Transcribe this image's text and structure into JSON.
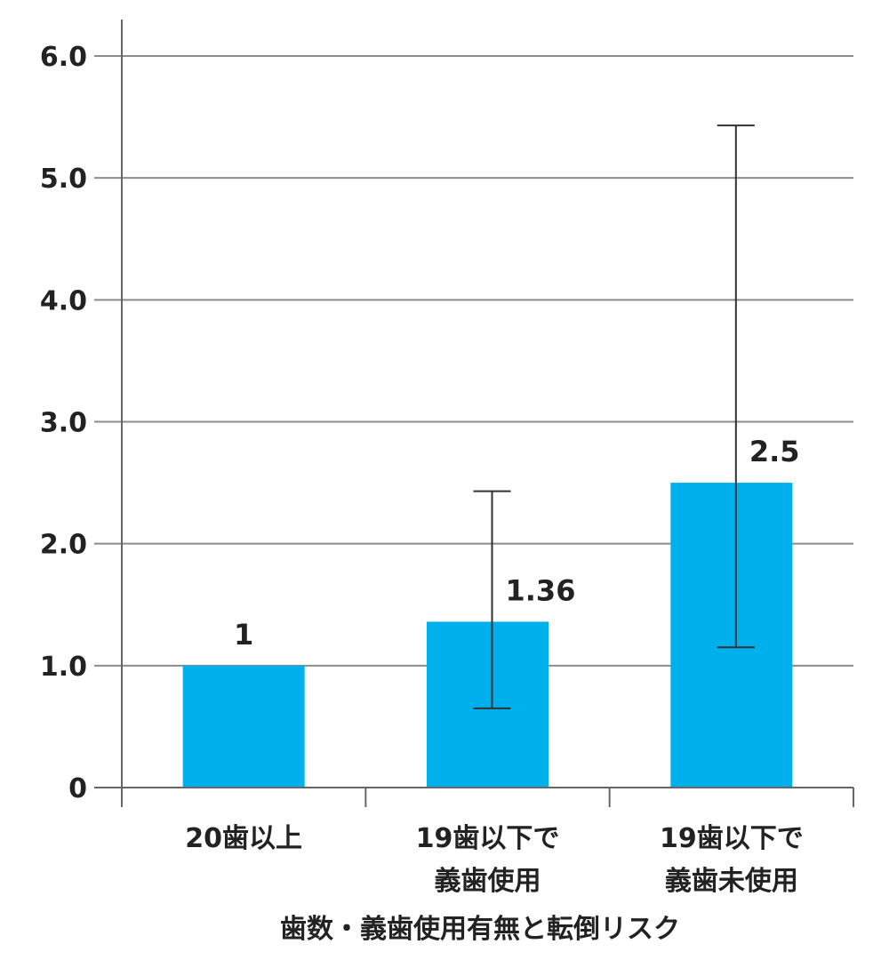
{
  "chart_data": {
    "type": "bar",
    "title": "",
    "xlabel": "歯数・義歯使用有無と転倒リスク",
    "ylabel": "",
    "ylim": [
      0,
      6
    ],
    "yticks": [
      {
        "value": 0,
        "label": "0"
      },
      {
        "value": 1,
        "label": "1.0"
      },
      {
        "value": 2,
        "label": "2.0"
      },
      {
        "value": 3,
        "label": "3.0"
      },
      {
        "value": 4,
        "label": "4.0"
      },
      {
        "value": 5,
        "label": "5.0"
      },
      {
        "value": 6,
        "label": "6.0"
      }
    ],
    "grid": true,
    "categories": [
      [
        "20歯以上"
      ],
      [
        "19歯以下で",
        "義歯使用"
      ],
      [
        "19歯以下で",
        "義歯未使用"
      ]
    ],
    "values": [
      1,
      1.36,
      2.5
    ],
    "value_labels": [
      "1",
      "1.36",
      "2.5"
    ],
    "error_bars": [
      null,
      {
        "low": 0.65,
        "high": 2.43
      },
      {
        "low": 1.15,
        "high": 5.43
      }
    ],
    "bar_color": "#00b0ec",
    "grid_color": "#8c8c8c",
    "axis_color": "#666666",
    "errorbar_color": "#333333",
    "text_color": "#222222"
  }
}
